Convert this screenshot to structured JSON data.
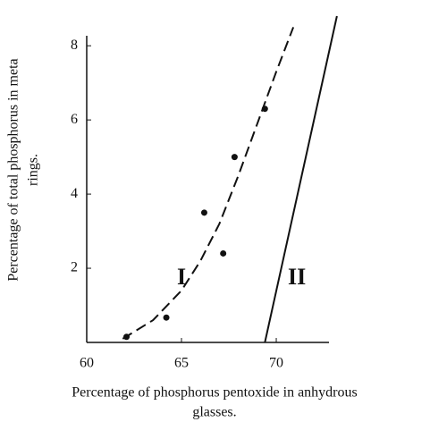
{
  "chart_data": {
    "type": "line",
    "x_label": [
      "Percentage of phosphorus pentoxide in anhydrous",
      "glasses."
    ],
    "y_label": [
      "Percentage of total phosphorus in meta",
      "rings."
    ],
    "xlim": [
      60,
      73.3
    ],
    "ylim": [
      0,
      8.8
    ],
    "xticks": [
      60,
      65,
      70
    ],
    "yticks": [
      2,
      4,
      6,
      8
    ],
    "series": [
      {
        "type": "scatter",
        "color": "#111111",
        "x": [
          62.1,
          64.2,
          66.2,
          67.2,
          67.8,
          69.4
        ],
        "values": [
          0.15,
          0.67,
          3.5,
          2.4,
          5.0,
          6.3
        ]
      },
      {
        "name": "I",
        "type": "line",
        "dashed": true,
        "color": "#111111",
        "x": [
          61.9,
          63.5,
          65,
          66,
          67,
          68,
          69,
          70,
          70.9
        ],
        "values": [
          0.1,
          0.6,
          1.4,
          2.2,
          3.2,
          4.5,
          5.9,
          7.3,
          8.5
        ]
      },
      {
        "name": "II",
        "type": "line",
        "dashed": false,
        "color": "#111111",
        "x": [
          69.4,
          73.2
        ],
        "values": [
          0,
          8.8
        ]
      }
    ]
  }
}
